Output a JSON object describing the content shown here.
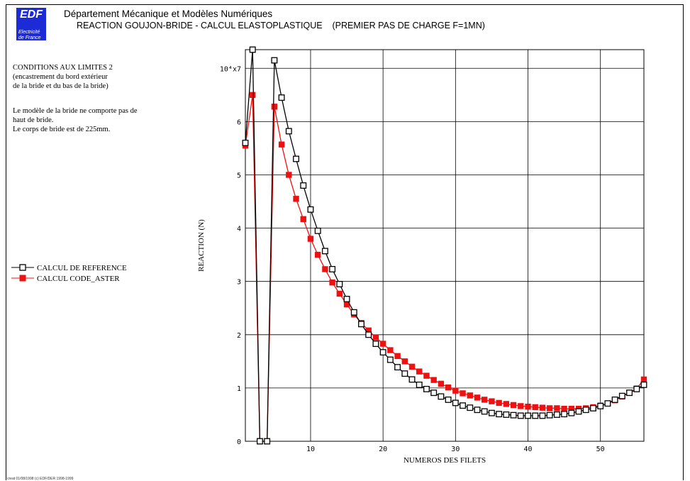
{
  "header": {
    "logo_big": "EDF",
    "logo_small_1": "Electricité",
    "logo_small_2": "de France",
    "department": "Département Mécanique et Modèles Numériques",
    "title": "REACTION GOUJON-BRIDE - CALCUL ELASTOPLASTIQUE    (PREMIER PAS DE CHARGE F=1MN)"
  },
  "notes": {
    "conditions_1": "CONDITIONS AUX LIMITES 2",
    "conditions_2": "(encastrement du bord extérieur",
    "conditions_3": "de la bride et du bas de la bride)",
    "model_1": "Le modèle de la bride ne comporte pas de",
    "model_2": "haut de bride.",
    "model_3": "Le corps de bride est de 225mm."
  },
  "legend": {
    "reference": "CALCUL DE REFERENCE",
    "aster": "CALCUL CODE_ASTER"
  },
  "footer": "creat 01/08/1998 (c) EDF/DER 1998-1999",
  "colors": {
    "reference": "#000000",
    "aster": "#ee1111",
    "logo": "#1c2bd6"
  },
  "chart_data": {
    "type": "line",
    "xlabel": "NUMEROS DES FILETS",
    "ylabel": "REACTION (N)",
    "y_multiplier_label": "10⁴x",
    "xlim": [
      1,
      56
    ],
    "ylim": [
      0,
      7.35
    ],
    "x_ticks": [
      10,
      20,
      30,
      40,
      50
    ],
    "y_ticks": [
      0,
      1,
      2,
      3,
      4,
      5,
      6,
      7
    ],
    "grid": true,
    "legend_position": "left",
    "x": [
      1,
      2,
      3,
      4,
      5,
      6,
      7,
      8,
      9,
      10,
      11,
      12,
      13,
      14,
      15,
      16,
      17,
      18,
      19,
      20,
      21,
      22,
      23,
      24,
      25,
      26,
      27,
      28,
      29,
      30,
      31,
      32,
      33,
      34,
      35,
      36,
      37,
      38,
      39,
      40,
      41,
      42,
      43,
      44,
      45,
      46,
      47,
      48,
      49,
      50,
      51,
      52,
      53,
      54,
      55,
      56
    ],
    "series": [
      {
        "name": "CALCUL DE REFERENCE",
        "marker": "open-square",
        "values": [
          5.6,
          7.35,
          0.0,
          0.0,
          7.15,
          6.45,
          5.82,
          5.3,
          4.8,
          4.35,
          3.95,
          3.57,
          3.23,
          2.95,
          2.67,
          2.42,
          2.2,
          2.0,
          1.83,
          1.67,
          1.53,
          1.39,
          1.27,
          1.16,
          1.06,
          0.98,
          0.91,
          0.84,
          0.78,
          0.72,
          0.67,
          0.63,
          0.59,
          0.56,
          0.53,
          0.51,
          0.5,
          0.49,
          0.48,
          0.48,
          0.48,
          0.48,
          0.49,
          0.5,
          0.51,
          0.53,
          0.56,
          0.59,
          0.62,
          0.66,
          0.71,
          0.78,
          0.85,
          0.91,
          0.98,
          1.06
        ]
      },
      {
        "name": "CALCUL CODE_ASTER",
        "marker": "filled-square",
        "values": [
          5.55,
          6.5,
          0.0,
          0.0,
          6.28,
          5.57,
          5.0,
          4.55,
          4.17,
          3.8,
          3.5,
          3.23,
          2.98,
          2.77,
          2.57,
          2.38,
          2.22,
          2.08,
          1.95,
          1.83,
          1.71,
          1.6,
          1.5,
          1.4,
          1.31,
          1.23,
          1.15,
          1.08,
          1.01,
          0.95,
          0.9,
          0.86,
          0.82,
          0.78,
          0.75,
          0.72,
          0.7,
          0.68,
          0.66,
          0.65,
          0.64,
          0.63,
          0.62,
          0.62,
          0.61,
          0.61,
          0.61,
          0.62,
          0.64,
          0.67,
          0.71,
          0.77,
          0.84,
          0.91,
          0.99,
          1.16
        ]
      }
    ]
  }
}
